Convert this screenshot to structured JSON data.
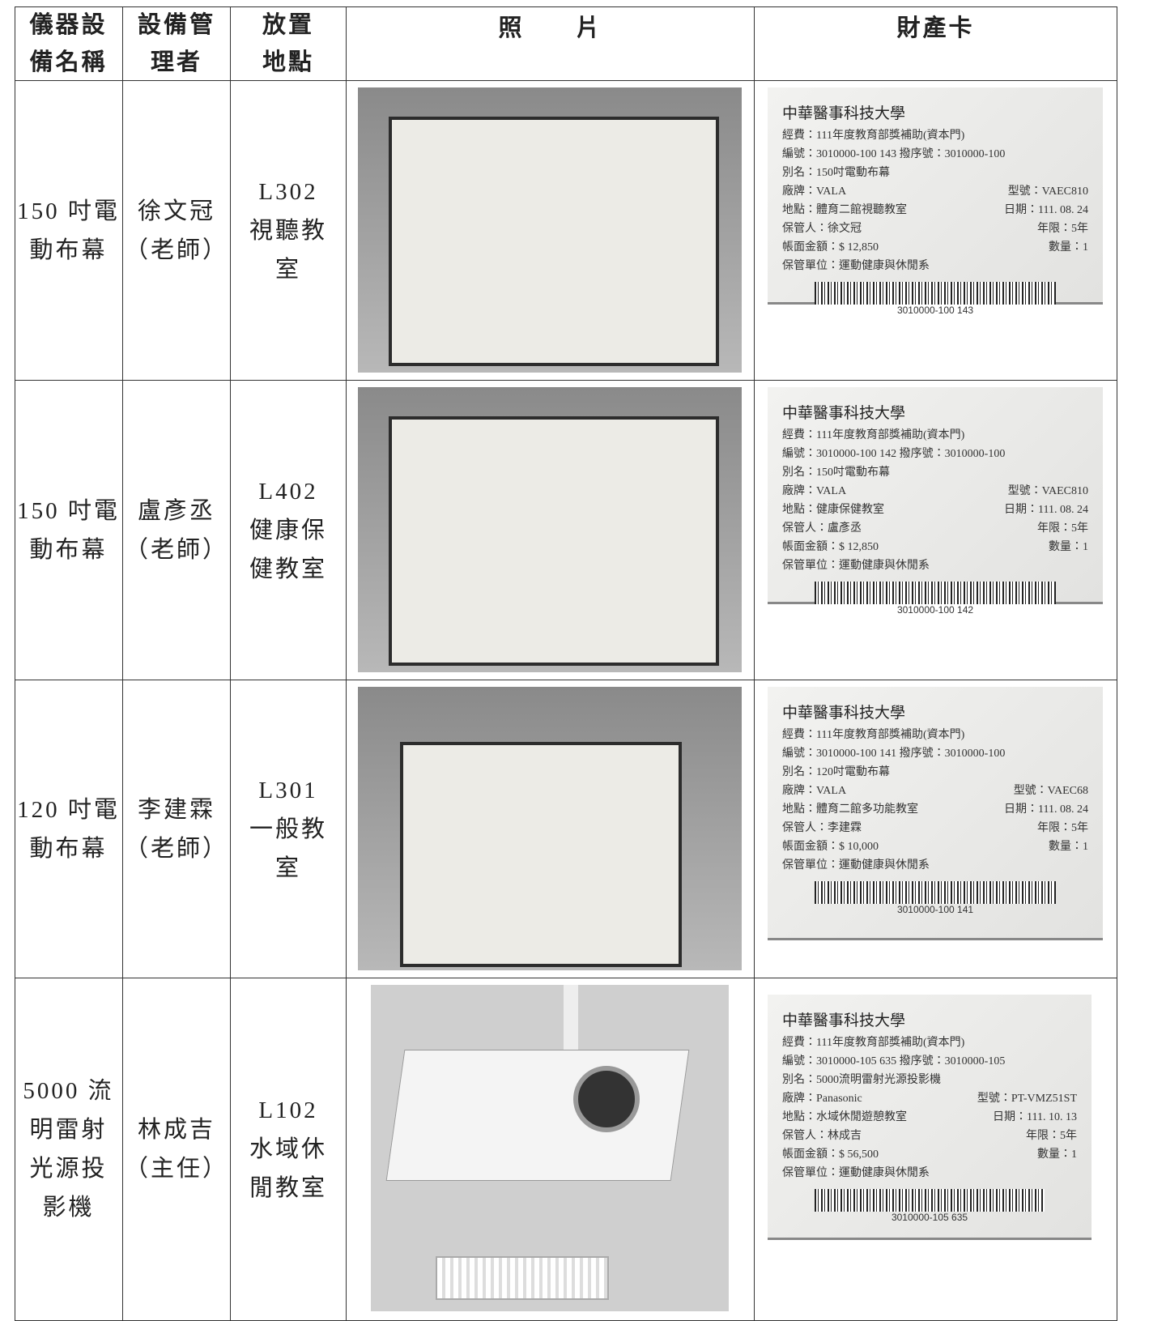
{
  "table": {
    "header": [
      [
        "儀器設",
        "備名稱"
      ],
      [
        "設備管",
        "理者"
      ],
      [
        "放置",
        "地點"
      ],
      [
        "照　　片"
      ],
      [
        "財產卡"
      ]
    ],
    "rows": [
      {
        "name": [
          "150 吋電",
          "動布幕"
        ],
        "manager": [
          "徐文冠",
          "（老師）"
        ],
        "location": [
          "L302",
          "視聽教",
          "室"
        ],
        "card": {
          "lines": [
            [
              "中華醫事科技大學"
            ],
            [
              "經費：111年度教育部獎補助(資本門)"
            ],
            [
              "編號：3010000-100 143  撥序號：3010000-100"
            ],
            [
              "別名：150吋電動布幕"
            ],
            [
              "廠牌：VALA",
              "型號：VAEC810"
            ],
            [
              "地點：體育二館視聽教室",
              "日期：111. 08. 24"
            ],
            [
              "保管人：徐文冠",
              "年限：5年"
            ],
            [
              "帳面金額：$ 12,850",
              "數量：1"
            ],
            [
              "保管單位：運動健康與休閒系"
            ]
          ],
          "barcode": "3010000-100 143"
        }
      },
      {
        "name": [
          "150 吋電",
          "動布幕"
        ],
        "manager": [
          "盧彥丞",
          "（老師）"
        ],
        "location": [
          "L402",
          "健康保",
          "健教室"
        ],
        "card": {
          "lines": [
            [
              "中華醫事科技大學"
            ],
            [
              "經費：111年度教育部獎補助(資本門)"
            ],
            [
              "編號：3010000-100 142  撥序號：3010000-100"
            ],
            [
              "別名：150吋電動布幕"
            ],
            [
              "廠牌：VALA",
              "型號：VAEC810"
            ],
            [
              "地點：健康保健教室",
              "日期：111. 08. 24"
            ],
            [
              "保管人：盧彥丞",
              "年限：5年"
            ],
            [
              "帳面金額：$ 12,850",
              "數量：1"
            ],
            [
              "保管單位：運動健康與休閒系"
            ]
          ],
          "barcode": "3010000-100 142"
        }
      },
      {
        "name": [
          "120 吋電",
          "動布幕"
        ],
        "manager": [
          "李建霖",
          "（老師）"
        ],
        "location": [
          "L301",
          "一般教",
          "室"
        ],
        "card": {
          "lines": [
            [
              "中華醫事科技大學"
            ],
            [
              "經費：111年度教育部獎補助(資本門)"
            ],
            [
              "編號：3010000-100 141  撥序號：3010000-100"
            ],
            [
              "別名：120吋電動布幕"
            ],
            [
              "廠牌：VALA",
              "型號：VAEC68"
            ],
            [
              "地點：體育二館多功能教室",
              "日期：111. 08. 24"
            ],
            [
              "保管人：李建霖",
              "年限：5年"
            ],
            [
              "帳面金額：$ 10,000",
              "數量：1"
            ],
            [
              "保管單位：運動健康與休閒系"
            ]
          ],
          "barcode": "3010000-100 141"
        }
      },
      {
        "name": [
          "5000 流",
          "明雷射",
          "光源投",
          "影機"
        ],
        "manager": [
          "林成吉",
          "（主任）"
        ],
        "location": [
          "L102",
          "水域休",
          "閒教室"
        ],
        "card": {
          "lines": [
            [
              "中華醫事科技大學"
            ],
            [
              "經費：111年度教育部獎補助(資本門)"
            ],
            [
              "編號：3010000-105 635  撥序號：3010000-105"
            ],
            [
              "別名：5000流明雷射光源投影機"
            ],
            [
              "廠牌：Panasonic",
              "型號：PT-VMZ51ST"
            ],
            [
              "地點：水域休閒遊憩教室",
              "日期：111. 10. 13"
            ],
            [
              "保管人：林成吉",
              "年限：5年"
            ],
            [
              "帳面金額：$ 56,500",
              "數量：1"
            ],
            [
              "保管單位：運動健康與休閒系"
            ]
          ],
          "barcode": "3010000-105 635"
        }
      }
    ]
  }
}
